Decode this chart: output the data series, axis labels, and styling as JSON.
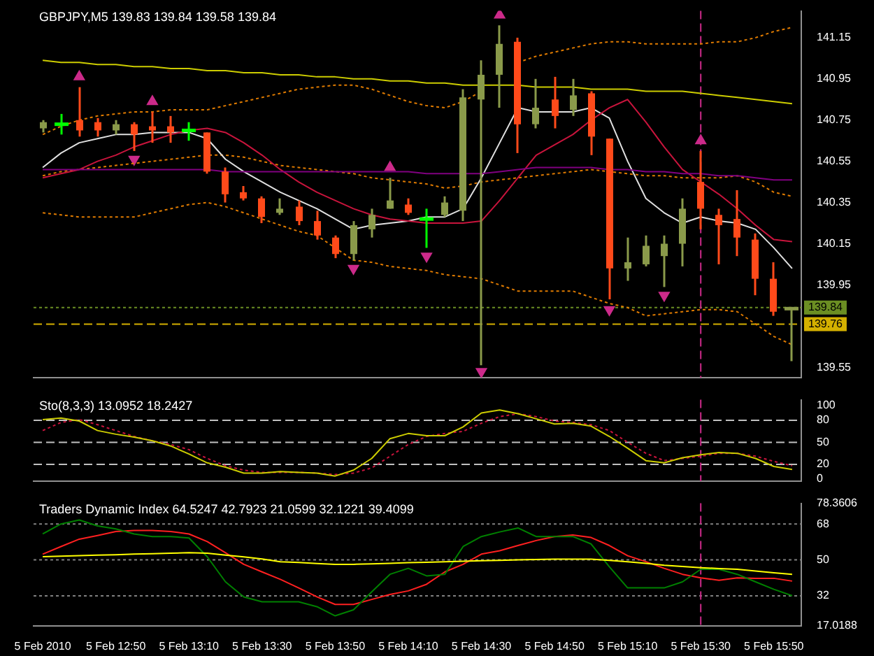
{
  "chart_data": [
    {
      "type": "candlestick",
      "title": "GBPJPY,M5  139.83 139.84 139.58 139.84",
      "categories": [
        "5 Feb 2010",
        null,
        null,
        null,
        "5 Feb 12:50",
        null,
        null,
        null,
        "5 Feb 13:10",
        null,
        null,
        null,
        "5 Feb 13:30",
        null,
        null,
        null,
        "5 Feb 13:50",
        null,
        null,
        null,
        "5 Feb 14:10",
        null,
        null,
        null,
        "5 Feb 14:30",
        null,
        null,
        null,
        "5 Feb 14:50",
        null,
        null,
        null,
        "5 Feb 15:10",
        null,
        null,
        null,
        "5 Feb 15:30",
        null,
        null,
        null,
        "5 Feb 15:50",
        null
      ],
      "ohlc": [
        [
          140.71,
          140.75,
          140.69,
          140.74
        ],
        [
          140.73,
          140.78,
          140.68,
          140.73
        ],
        [
          140.75,
          140.91,
          140.67,
          140.7
        ],
        [
          140.74,
          140.76,
          140.67,
          140.7
        ],
        [
          140.7,
          140.75,
          140.68,
          140.73
        ],
        [
          140.73,
          140.74,
          140.6,
          140.68
        ],
        [
          140.72,
          140.79,
          140.64,
          140.7
        ],
        [
          140.72,
          140.77,
          140.64,
          140.69
        ],
        [
          140.7,
          140.74,
          140.65,
          140.7
        ],
        [
          140.69,
          140.69,
          140.49,
          140.5
        ],
        [
          140.5,
          140.52,
          140.35,
          140.39
        ],
        [
          140.4,
          140.43,
          140.36,
          140.37
        ],
        [
          140.37,
          140.38,
          140.25,
          140.28
        ],
        [
          140.3,
          140.37,
          140.29,
          140.32
        ],
        [
          140.33,
          140.36,
          140.24,
          140.26
        ],
        [
          140.26,
          140.31,
          140.17,
          140.19
        ],
        [
          140.18,
          140.19,
          140.08,
          140.1
        ],
        [
          140.1,
          140.26,
          140.07,
          140.24
        ],
        [
          140.22,
          140.32,
          140.18,
          140.29
        ],
        [
          140.32,
          140.47,
          140.32,
          140.36
        ],
        [
          140.34,
          140.37,
          140.29,
          140.3
        ],
        [
          140.27,
          140.32,
          140.13,
          140.27
        ],
        [
          140.29,
          140.38,
          140.28,
          140.35
        ],
        [
          140.31,
          140.9,
          140.26,
          140.86
        ],
        [
          140.85,
          141.04,
          139.56,
          140.97
        ],
        [
          140.97,
          141.21,
          140.81,
          141.12
        ],
        [
          141.13,
          141.15,
          140.59,
          140.73
        ],
        [
          140.73,
          140.95,
          140.71,
          140.81
        ],
        [
          140.85,
          140.96,
          140.71,
          140.77
        ],
        [
          140.8,
          140.95,
          140.77,
          140.87
        ],
        [
          140.88,
          140.89,
          140.58,
          140.67
        ],
        [
          140.66,
          140.66,
          139.88,
          140.03
        ],
        [
          140.03,
          140.18,
          139.97,
          140.06
        ],
        [
          140.05,
          140.19,
          140.04,
          140.14
        ],
        [
          140.09,
          140.19,
          139.94,
          140.15
        ],
        [
          140.15,
          140.37,
          140.04,
          140.32
        ],
        [
          140.45,
          140.6,
          140.22,
          140.32
        ],
        [
          140.29,
          140.32,
          140.05,
          140.24
        ],
        [
          140.27,
          140.41,
          140.09,
          140.18
        ],
        [
          140.17,
          140.2,
          139.9,
          139.98
        ],
        [
          139.98,
          140.06,
          139.8,
          139.82
        ],
        [
          139.83,
          139.84,
          139.58,
          139.84
        ]
      ],
      "colors": [
        "#8a9a4a",
        "#00ff00",
        "#ff4a1a",
        "#ff4a1a",
        "#8a9a4a",
        "#ff4a1a",
        "#ff4a1a",
        "#ff4a1a",
        "#00ff00",
        "#ff4a1a",
        "#ff4a1a",
        "#ff4a1a",
        "#ff4a1a",
        "#8a9a4a",
        "#ff4a1a",
        "#ff4a1a",
        "#ff4a1a",
        "#8a9a4a",
        "#8a9a4a",
        "#8a9a4a",
        "#ff4a1a",
        "#00ff00",
        "#8a9a4a",
        "#8a9a4a",
        "#8a9a4a",
        "#8a9a4a",
        "#ff4a1a",
        "#8a9a4a",
        "#ff4a1a",
        "#8a9a4a",
        "#ff4a1a",
        "#ff4a1a",
        "#8a9a4a",
        "#8a9a4a",
        "#8a9a4a",
        "#8a9a4a",
        "#ff4a1a",
        "#ff4a1a",
        "#ff4a1a",
        "#ff4a1a",
        "#ff4a1a",
        "#8a9a4a"
      ],
      "series": [
        {
          "type": "line",
          "color": "#cccc00",
          "values": [
            141.04,
            141.03,
            141.03,
            141.02,
            141.02,
            141.01,
            141.01,
            141.0,
            141.0,
            140.99,
            140.99,
            140.98,
            140.98,
            140.97,
            140.97,
            140.96,
            140.96,
            140.95,
            140.95,
            140.94,
            140.94,
            140.93,
            140.93,
            140.92,
            140.92,
            140.92,
            140.92,
            140.91,
            140.91,
            140.91,
            140.9,
            140.9,
            140.9,
            140.89,
            140.89,
            140.89,
            140.88,
            140.87,
            140.86,
            140.85,
            140.84,
            140.83
          ]
        },
        {
          "type": "line",
          "color": "#800080",
          "values": [
            140.51,
            140.51,
            140.51,
            140.51,
            140.51,
            140.51,
            140.51,
            140.51,
            140.51,
            140.51,
            140.5,
            140.5,
            140.5,
            140.5,
            140.5,
            140.5,
            140.5,
            140.5,
            140.5,
            140.5,
            140.5,
            140.49,
            140.49,
            140.49,
            140.49,
            140.5,
            140.51,
            140.52,
            140.52,
            140.52,
            140.52,
            140.51,
            140.51,
            140.5,
            140.5,
            140.49,
            140.49,
            140.48,
            140.48,
            140.47,
            140.46,
            140.46
          ]
        },
        {
          "type": "line",
          "color": "#c8143c",
          "values": [
            140.47,
            140.49,
            140.51,
            140.55,
            140.58,
            140.62,
            140.65,
            140.68,
            140.7,
            140.71,
            140.69,
            140.64,
            140.58,
            140.51,
            140.45,
            140.4,
            140.36,
            140.32,
            140.29,
            140.27,
            140.26,
            140.25,
            140.25,
            140.25,
            140.26,
            140.36,
            140.47,
            140.58,
            140.63,
            140.68,
            140.75,
            140.81,
            140.85,
            140.74,
            140.62,
            140.51,
            140.45,
            140.39,
            140.32,
            140.24,
            140.17,
            140.16
          ]
        },
        {
          "type": "line",
          "color": "#e0e0e0",
          "values": [
            140.52,
            140.59,
            140.64,
            140.66,
            140.68,
            140.68,
            140.69,
            140.69,
            140.69,
            140.66,
            140.56,
            140.5,
            140.45,
            140.4,
            140.36,
            140.32,
            140.27,
            140.22,
            140.24,
            140.25,
            140.26,
            140.28,
            140.28,
            140.32,
            140.47,
            140.64,
            140.81,
            140.79,
            140.79,
            140.79,
            140.81,
            140.76,
            140.55,
            140.37,
            140.3,
            140.25,
            140.28,
            140.26,
            140.25,
            140.22,
            140.13,
            140.03
          ]
        },
        {
          "type": "line",
          "color": "#e07b00",
          "line_style": "dotted",
          "values": [
            140.68,
            140.72,
            140.75,
            140.77,
            140.78,
            140.79,
            140.79,
            140.8,
            140.8,
            140.8,
            140.82,
            140.84,
            140.86,
            140.88,
            140.9,
            140.91,
            140.92,
            140.92,
            140.9,
            140.87,
            140.84,
            140.82,
            140.81,
            140.84,
            140.89,
            null,
            141.03,
            141.06,
            141.08,
            141.1,
            141.12,
            141.13,
            141.13,
            141.12,
            141.12,
            141.12,
            141.12,
            141.13,
            141.13,
            141.15,
            141.18,
            141.2
          ]
        },
        {
          "type": "line",
          "color": "#e07b00",
          "line_style": "dotted",
          "values": [
            140.48,
            140.5,
            140.51,
            140.52,
            140.53,
            140.54,
            140.55,
            140.56,
            140.57,
            140.58,
            140.58,
            140.57,
            140.55,
            140.53,
            140.52,
            140.51,
            140.5,
            140.49,
            140.47,
            140.46,
            140.45,
            140.44,
            140.42,
            140.43,
            140.45,
            140.46,
            140.47,
            140.48,
            140.49,
            140.5,
            140.51,
            140.5,
            140.49,
            140.48,
            140.48,
            140.47,
            140.47,
            140.47,
            140.48,
            140.45,
            140.4,
            140.38
          ]
        },
        {
          "type": "line",
          "color": "#e07b00",
          "line_style": "dotted",
          "values": [
            140.3,
            140.29,
            140.28,
            140.28,
            140.28,
            140.28,
            140.3,
            140.32,
            140.34,
            140.35,
            140.33,
            140.3,
            140.27,
            140.24,
            140.21,
            140.19,
            140.13,
            140.07,
            140.06,
            140.04,
            140.03,
            140.02,
            140.0,
            139.99,
            139.98,
            139.95,
            139.92,
            139.92,
            139.92,
            139.92,
            139.89,
            139.86,
            139.84,
            139.8,
            139.81,
            139.82,
            139.83,
            139.83,
            139.82,
            139.76,
            139.7,
            139.66
          ]
        },
        {
          "type": "scatter",
          "marker": "triangle",
          "color": "#cc2a8a",
          "values": [
            null,
            null,
            140.96,
            null,
            null,
            null,
            140.84,
            null,
            null,
            null,
            null,
            null,
            null,
            null,
            null,
            null,
            null,
            null,
            null,
            140.52,
            null,
            null,
            null,
            null,
            null,
            141.26,
            null,
            null,
            null,
            null,
            null,
            null,
            null,
            null,
            null,
            null,
            140.65,
            null,
            null,
            null,
            null,
            null
          ]
        },
        {
          "type": "scatter",
          "marker": "triangle",
          "color": "#cc2a8a",
          "values": [
            null,
            null,
            null,
            null,
            null,
            140.56,
            null,
            null,
            null,
            null,
            null,
            null,
            null,
            null,
            null,
            null,
            null,
            140.03,
            null,
            null,
            null,
            140.09,
            null,
            null,
            139.53,
            null,
            null,
            null,
            null,
            null,
            null,
            139.83,
            null,
            null,
            139.9,
            null,
            null,
            null,
            null,
            null,
            null,
            null
          ]
        }
      ],
      "ylim": [
        139.5,
        141.28
      ],
      "yticks": [
        141.15,
        140.95,
        140.75,
        140.55,
        140.35,
        140.15,
        139.95,
        139.55
      ],
      "tick_labels": "y",
      "ref_lines": [
        {
          "axis": "y",
          "value": 139.84,
          "label": "139.84",
          "color": "#6b8e23",
          "line_style": "dotted"
        },
        {
          "axis": "y",
          "value": 139.76,
          "label": "139.76",
          "color": "#d4b000",
          "line_style": "dashed"
        },
        {
          "axis": "x",
          "value": "5 Feb 15:30",
          "color": "#cc2a8a",
          "line_style": "dashed"
        }
      ]
    },
    {
      "type": "line",
      "title": "Sto(8,3,3) 13.0952 18.2427",
      "categories": [
        "5 Feb 2010",
        null,
        null,
        null,
        "5 Feb 12:50",
        null,
        null,
        null,
        "5 Feb 13:10",
        null,
        null,
        null,
        "5 Feb 13:30",
        null,
        null,
        null,
        "5 Feb 13:50",
        null,
        null,
        null,
        "5 Feb 14:10",
        null,
        null,
        null,
        "5 Feb 14:30",
        null,
        null,
        null,
        "5 Feb 14:50",
        null,
        null,
        null,
        "5 Feb 15:10",
        null,
        null,
        null,
        "5 Feb 15:30",
        null,
        null,
        null,
        "5 Feb 15:50",
        null
      ],
      "series": [
        {
          "color": "#cccc00",
          "values": [
            81,
            83,
            79,
            66,
            61,
            57,
            52,
            45,
            34,
            22,
            16,
            8,
            8,
            10,
            9,
            8,
            4,
            12,
            28,
            55,
            62,
            59,
            59,
            71,
            90,
            94,
            89,
            82,
            75,
            76,
            72,
            58,
            42,
            25,
            22,
            29,
            33,
            36,
            35,
            28,
            17,
            13
          ]
        },
        {
          "color": "#c8143c",
          "line_style": "dotted",
          "values": [
            66,
            77,
            81,
            74,
            66,
            58,
            52,
            47,
            40,
            28,
            18,
            12,
            9,
            9,
            9,
            8,
            6,
            8,
            15,
            31,
            47,
            58,
            62,
            65,
            76,
            85,
            89,
            85,
            79,
            77,
            74,
            66,
            50,
            35,
            25,
            28,
            31,
            35,
            35,
            31,
            24,
            18
          ]
        }
      ],
      "ylim": [
        -3,
        108
      ],
      "yticks": [
        100,
        80,
        50,
        20,
        0
      ],
      "tick_labels": "y",
      "ref_lines": [
        {
          "axis": "y",
          "value": 80,
          "color": "#c0c0c0",
          "line_style": "dashed"
        },
        {
          "axis": "y",
          "value": 50,
          "color": "#c0c0c0",
          "line_style": "dashed"
        },
        {
          "axis": "y",
          "value": 20,
          "color": "#c0c0c0",
          "line_style": "dashed"
        },
        {
          "axis": "x",
          "value": "5 Feb 15:30",
          "color": "#cc2a8a",
          "line_style": "dashed"
        }
      ]
    },
    {
      "type": "line",
      "title": "Traders Dynamic Index 64.5247 42.7923 21.0599 32.1221 39.4099",
      "categories": [
        "5 Feb 2010",
        null,
        null,
        null,
        "5 Feb 12:50",
        null,
        null,
        null,
        "5 Feb 13:10",
        null,
        null,
        null,
        "5 Feb 13:30",
        null,
        null,
        null,
        "5 Feb 13:50",
        null,
        null,
        null,
        "5 Feb 14:10",
        null,
        null,
        null,
        "5 Feb 14:30",
        null,
        null,
        null,
        "5 Feb 14:50",
        null,
        null,
        null,
        "5 Feb 15:10",
        null,
        null,
        null,
        "5 Feb 15:30",
        null,
        null,
        null,
        "5 Feb 15:50",
        null
      ],
      "series": [
        {
          "color": "#ffff00",
          "values": [
            51.6,
            51.9,
            52.1,
            52.4,
            52.6,
            52.9,
            53.1,
            53.4,
            53.6,
            53.4,
            52.4,
            51.5,
            50.5,
            49.1,
            48.7,
            48.2,
            47.8,
            47.8,
            48.0,
            48.3,
            48.6,
            48.8,
            49.1,
            49.3,
            49.6,
            49.8,
            50.0,
            50.2,
            50.4,
            50.4,
            50.4,
            49.8,
            49.1,
            48.3,
            47.3,
            46.7,
            46.1,
            45.7,
            45.3,
            44.4,
            43.6,
            42.8
          ]
        },
        {
          "color": "#008000",
          "values": [
            63,
            68,
            70,
            67,
            65.5,
            63,
            61.7,
            61.7,
            61,
            51.6,
            39,
            31.5,
            29,
            29,
            29,
            26.6,
            22,
            25,
            34,
            42.8,
            45.8,
            42,
            42.8,
            56.7,
            61.7,
            64,
            66,
            61.7,
            61.7,
            61.7,
            58,
            46.6,
            36,
            36,
            36,
            39,
            45.3,
            45.3,
            42.8,
            39,
            35.3,
            32.1
          ]
        },
        {
          "color": "#ff2020",
          "values": [
            52.9,
            56.7,
            60.4,
            62.2,
            64.2,
            64.7,
            64.7,
            64.2,
            63,
            59.2,
            53.6,
            47.8,
            44,
            40.3,
            36,
            31.5,
            27.7,
            27.7,
            30.2,
            32.7,
            34.5,
            37.8,
            44,
            47.8,
            52.9,
            54.6,
            57.2,
            59.7,
            61.7,
            62.5,
            61.2,
            57.2,
            52.1,
            49.1,
            45.8,
            42.8,
            41,
            39.8,
            41,
            40.8,
            40.8,
            39.4
          ]
        }
      ],
      "ylim": [
        17.0188,
        78.3606
      ],
      "yticks": [
        78.3606,
        68,
        50,
        32,
        17.0188
      ],
      "ref_lines": [
        {
          "axis": "y",
          "value": 68,
          "color": "#808080",
          "line_style": "dotted"
        },
        {
          "axis": "y",
          "value": 50,
          "color": "#808080",
          "line_style": "dotted"
        },
        {
          "axis": "y",
          "value": 32,
          "color": "#808080",
          "line_style": "dotted"
        },
        {
          "axis": "x",
          "value": "5 Feb 15:30",
          "color": "#cc2a8a",
          "line_style": "dashed"
        }
      ]
    }
  ]
}
